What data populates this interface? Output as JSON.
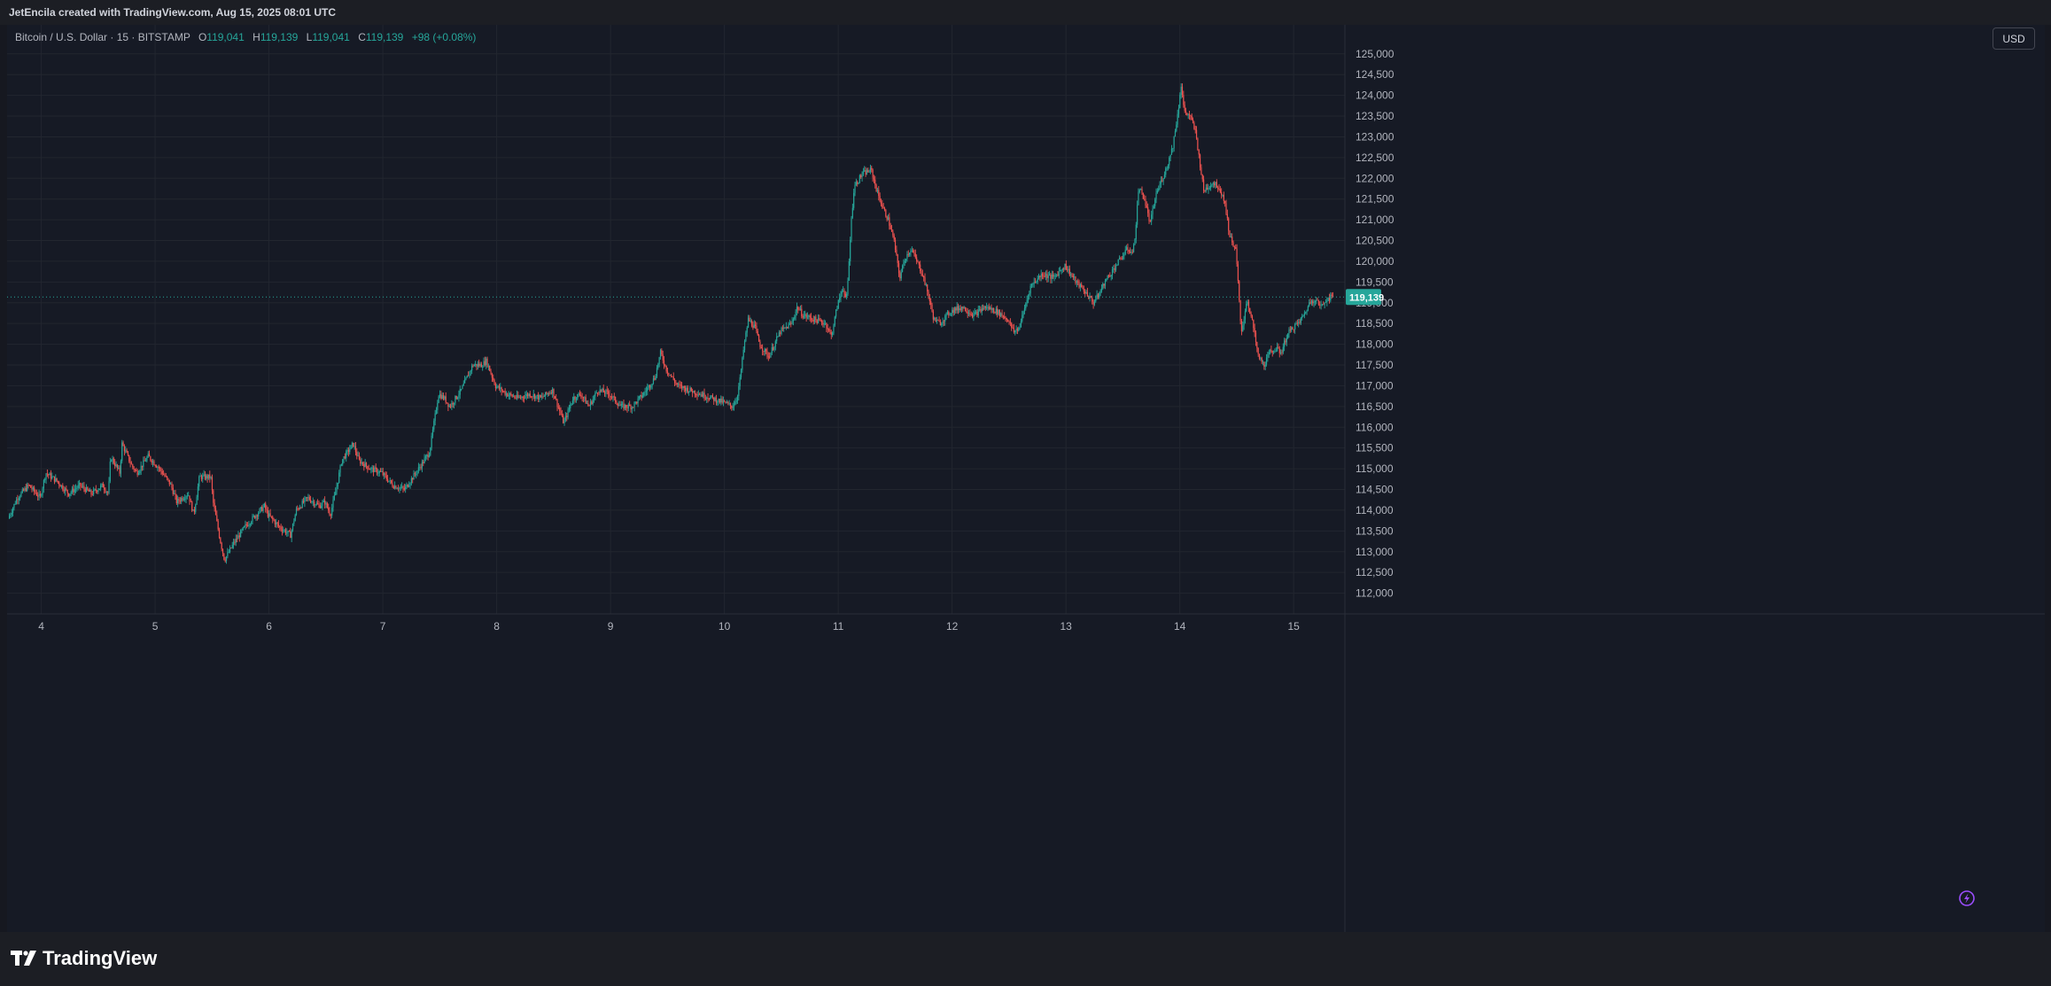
{
  "header": {
    "credit": "JetEncila created with TradingView.com, Aug 15, 2025 08:01 UTC"
  },
  "legend": {
    "symbol": "Bitcoin / U.S. Dollar · 15 · BITSTAMP",
    "open_label": "O",
    "open": "119,041",
    "high_label": "H",
    "high": "119,139",
    "low_label": "L",
    "low": "119,041",
    "close_label": "C",
    "close": "119,139",
    "change": "+98 (+0.08%)"
  },
  "currency": "USD",
  "last_price_label": "119,139",
  "footer": {
    "brand": "TradingView"
  },
  "icons": {
    "logo": "tradingview-logo-icon",
    "flash": "flash-icon"
  },
  "colors": {
    "up": "#26a69a",
    "down": "#ef5350",
    "background": "#161a25",
    "grid": "#22262f",
    "price_line": "#26a69a",
    "flash_icon": "#9b4dff"
  },
  "chart_data": {
    "type": "candlestick",
    "title": "Bitcoin / U.S. Dollar · 15 · BITSTAMP",
    "xlabel": "",
    "ylabel": "",
    "x_ticks": [
      "4",
      "5",
      "6",
      "7",
      "8",
      "9",
      "10",
      "11",
      "12",
      "13",
      "14",
      "15"
    ],
    "y_ticks": [
      112000,
      112500,
      113000,
      113500,
      114000,
      114500,
      115000,
      115500,
      116000,
      116500,
      117000,
      117500,
      118000,
      118500,
      119000,
      119500,
      120000,
      120500,
      121000,
      121500,
      122000,
      122500,
      123000,
      123500,
      124000,
      124500,
      125000
    ],
    "ylim": [
      111500,
      125700
    ],
    "xlim": [
      3.7,
      15.45
    ],
    "last_price": 119139,
    "grid": true,
    "price_path": [
      [
        3.72,
        113800
      ],
      [
        3.8,
        114300
      ],
      [
        3.9,
        114600
      ],
      [
        4.0,
        114300
      ],
      [
        4.05,
        114900
      ],
      [
        4.15,
        114700
      ],
      [
        4.25,
        114400
      ],
      [
        4.35,
        114600
      ],
      [
        4.45,
        114400
      ],
      [
        4.55,
        114600
      ],
      [
        4.6,
        114400
      ],
      [
        4.62,
        115300
      ],
      [
        4.7,
        114900
      ],
      [
        4.72,
        115600
      ],
      [
        4.8,
        115100
      ],
      [
        4.85,
        114900
      ],
      [
        4.95,
        115300
      ],
      [
        5.05,
        115000
      ],
      [
        5.15,
        114600
      ],
      [
        5.2,
        114200
      ],
      [
        5.3,
        114400
      ],
      [
        5.35,
        113900
      ],
      [
        5.4,
        114800
      ],
      [
        5.5,
        114800
      ],
      [
        5.52,
        114200
      ],
      [
        5.58,
        113300
      ],
      [
        5.62,
        112800
      ],
      [
        5.7,
        113200
      ],
      [
        5.8,
        113600
      ],
      [
        5.9,
        113900
      ],
      [
        5.97,
        114100
      ],
      [
        6.0,
        113900
      ],
      [
        6.1,
        113600
      ],
      [
        6.2,
        113400
      ],
      [
        6.25,
        114000
      ],
      [
        6.35,
        114300
      ],
      [
        6.45,
        114100
      ],
      [
        6.5,
        114200
      ],
      [
        6.55,
        113900
      ],
      [
        6.6,
        114500
      ],
      [
        6.65,
        115200
      ],
      [
        6.75,
        115600
      ],
      [
        6.8,
        115200
      ],
      [
        6.9,
        115000
      ],
      [
        7.0,
        114900
      ],
      [
        7.1,
        114600
      ],
      [
        7.2,
        114500
      ],
      [
        7.25,
        114700
      ],
      [
        7.35,
        115100
      ],
      [
        7.42,
        115400
      ],
      [
        7.5,
        116800
      ],
      [
        7.55,
        116700
      ],
      [
        7.6,
        116500
      ],
      [
        7.7,
        116900
      ],
      [
        7.8,
        117500
      ],
      [
        7.88,
        117500
      ],
      [
        7.92,
        117600
      ],
      [
        8.0,
        117000
      ],
      [
        8.1,
        116800
      ],
      [
        8.2,
        116700
      ],
      [
        8.3,
        116800
      ],
      [
        8.4,
        116700
      ],
      [
        8.5,
        116900
      ],
      [
        8.55,
        116500
      ],
      [
        8.6,
        116100
      ],
      [
        8.68,
        116700
      ],
      [
        8.75,
        116800
      ],
      [
        8.82,
        116500
      ],
      [
        8.9,
        116900
      ],
      [
        9.0,
        116800
      ],
      [
        9.1,
        116500
      ],
      [
        9.2,
        116500
      ],
      [
        9.3,
        116800
      ],
      [
        9.4,
        117200
      ],
      [
        9.45,
        117800
      ],
      [
        9.5,
        117400
      ],
      [
        9.6,
        117000
      ],
      [
        9.7,
        116900
      ],
      [
        9.8,
        116800
      ],
      [
        9.9,
        116700
      ],
      [
        10.0,
        116600
      ],
      [
        10.08,
        116500
      ],
      [
        10.12,
        116700
      ],
      [
        10.15,
        117200
      ],
      [
        10.18,
        117900
      ],
      [
        10.22,
        118600
      ],
      [
        10.28,
        118400
      ],
      [
        10.32,
        118000
      ],
      [
        10.4,
        117700
      ],
      [
        10.5,
        118300
      ],
      [
        10.6,
        118500
      ],
      [
        10.65,
        118900
      ],
      [
        10.7,
        118700
      ],
      [
        10.8,
        118600
      ],
      [
        10.9,
        118500
      ],
      [
        10.95,
        118200
      ],
      [
        11.0,
        118900
      ],
      [
        11.05,
        119400
      ],
      [
        11.08,
        119000
      ],
      [
        11.1,
        119700
      ],
      [
        11.12,
        120800
      ],
      [
        11.15,
        121800
      ],
      [
        11.22,
        122100
      ],
      [
        11.3,
        122200
      ],
      [
        11.35,
        121700
      ],
      [
        11.4,
        121300
      ],
      [
        11.45,
        121000
      ],
      [
        11.5,
        120500
      ],
      [
        11.55,
        119600
      ],
      [
        11.6,
        120100
      ],
      [
        11.65,
        120300
      ],
      [
        11.7,
        120000
      ],
      [
        11.75,
        119700
      ],
      [
        11.8,
        119200
      ],
      [
        11.85,
        118600
      ],
      [
        11.9,
        118500
      ],
      [
        12.0,
        118800
      ],
      [
        12.1,
        118900
      ],
      [
        12.2,
        118700
      ],
      [
        12.3,
        118900
      ],
      [
        12.4,
        118800
      ],
      [
        12.5,
        118600
      ],
      [
        12.55,
        118300
      ],
      [
        12.6,
        118400
      ],
      [
        12.65,
        118900
      ],
      [
        12.7,
        119400
      ],
      [
        12.8,
        119700
      ],
      [
        12.9,
        119600
      ],
      [
        13.0,
        119900
      ],
      [
        13.1,
        119500
      ],
      [
        13.2,
        119200
      ],
      [
        13.25,
        119000
      ],
      [
        13.3,
        119200
      ],
      [
        13.35,
        119500
      ],
      [
        13.45,
        119900
      ],
      [
        13.55,
        120300
      ],
      [
        13.6,
        120200
      ],
      [
        13.62,
        120700
      ],
      [
        13.65,
        121800
      ],
      [
        13.7,
        121500
      ],
      [
        13.75,
        120900
      ],
      [
        13.8,
        121600
      ],
      [
        13.9,
        122300
      ],
      [
        13.95,
        122800
      ],
      [
        14.0,
        123700
      ],
      [
        14.02,
        124300
      ],
      [
        14.05,
        123600
      ],
      [
        14.1,
        123500
      ],
      [
        14.15,
        123100
      ],
      [
        14.18,
        122500
      ],
      [
        14.22,
        121700
      ],
      [
        14.3,
        121900
      ],
      [
        14.35,
        121800
      ],
      [
        14.4,
        121500
      ],
      [
        14.45,
        120600
      ],
      [
        14.5,
        120300
      ],
      [
        14.52,
        119600
      ],
      [
        14.55,
        118200
      ],
      [
        14.6,
        119100
      ],
      [
        14.65,
        118500
      ],
      [
        14.7,
        117700
      ],
      [
        14.75,
        117500
      ],
      [
        14.8,
        117800
      ],
      [
        14.85,
        117900
      ],
      [
        14.9,
        117800
      ],
      [
        14.95,
        118200
      ],
      [
        15.0,
        118400
      ],
      [
        15.05,
        118500
      ],
      [
        15.1,
        118700
      ],
      [
        15.15,
        119000
      ],
      [
        15.2,
        119100
      ],
      [
        15.25,
        118900
      ],
      [
        15.3,
        119100
      ],
      [
        15.35,
        119139
      ]
    ]
  }
}
